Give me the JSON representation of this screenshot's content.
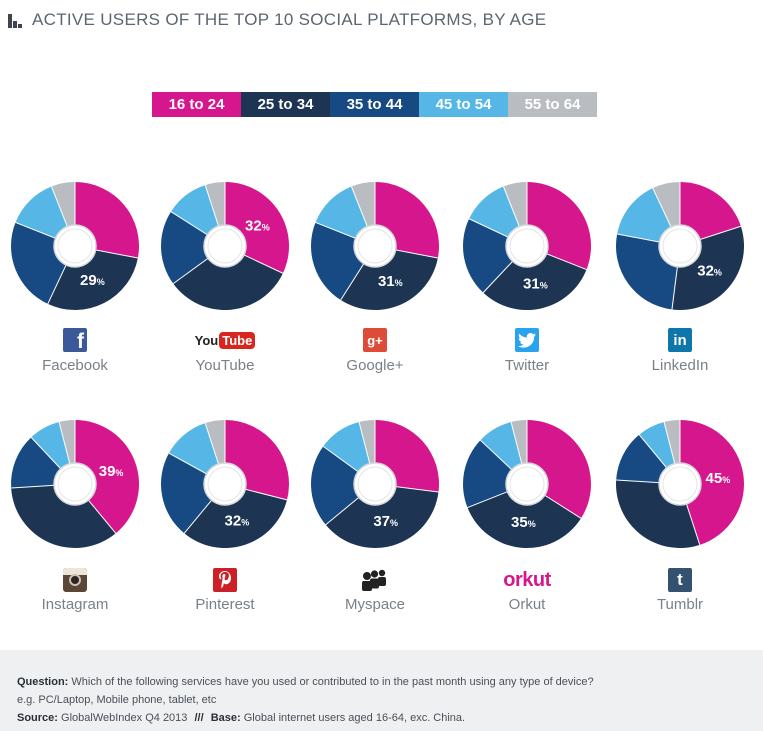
{
  "header": {
    "title": "ACTIVE USERS OF THE TOP 10 SOCIAL PLATFORMS, BY AGE"
  },
  "legend": [
    {
      "label": "16 to 24",
      "color": "#d6168d",
      "text_color": "#ffffff"
    },
    {
      "label": "25 to 34",
      "color": "#1d3553",
      "text_color": "#ffffff"
    },
    {
      "label": "35 to 44",
      "color": "#174a82",
      "text_color": "#ffffff"
    },
    {
      "label": "45 to 54",
      "color": "#56b7e6",
      "text_color": "#ffffff"
    },
    {
      "label": "55 to 64",
      "color": "#b9bcc0",
      "text_color": "#ffffff"
    }
  ],
  "chart_data": {
    "type": "pie",
    "categories": [
      "16 to 24",
      "25 to 34",
      "35 to 44",
      "45 to 54",
      "55 to 64"
    ],
    "series": [
      {
        "name": "Facebook",
        "values": [
          28,
          29,
          24,
          13,
          6
        ],
        "label_index": 1,
        "label": "29",
        "icon": "facebook-icon"
      },
      {
        "name": "YouTube",
        "values": [
          32,
          33,
          19,
          11,
          5
        ],
        "label_index": 0,
        "label": "32",
        "icon": "youtube-icon"
      },
      {
        "name": "Google+",
        "values": [
          28,
          31,
          22,
          13,
          6
        ],
        "label_index": 1,
        "label": "31",
        "icon": "google-plus-icon"
      },
      {
        "name": "Twitter",
        "values": [
          31,
          31,
          20,
          12,
          6
        ],
        "label_index": 1,
        "label": "31",
        "icon": "twitter-icon"
      },
      {
        "name": "LinkedIn",
        "values": [
          20,
          32,
          26,
          15,
          7
        ],
        "label_index": 1,
        "label": "32",
        "icon": "linkedin-icon"
      },
      {
        "name": "Instagram",
        "values": [
          39,
          35,
          14,
          8,
          4
        ],
        "label_index": 0,
        "label": "39",
        "icon": "instagram-icon"
      },
      {
        "name": "Pinterest",
        "values": [
          29,
          32,
          22,
          12,
          5
        ],
        "label_index": 1,
        "label": "32",
        "icon": "pinterest-icon"
      },
      {
        "name": "Myspace",
        "values": [
          27,
          37,
          21,
          11,
          4
        ],
        "label_index": 1,
        "label": "37",
        "icon": "myspace-icon"
      },
      {
        "name": "Orkut",
        "values": [
          34,
          35,
          18,
          9,
          4
        ],
        "label_index": 1,
        "label": "35",
        "icon": "orkut-icon"
      },
      {
        "name": "Tumblr",
        "values": [
          45,
          31,
          13,
          7,
          4
        ],
        "label_index": 0,
        "label": "45",
        "icon": "tumblr-icon"
      }
    ],
    "percent_symbol": "%"
  },
  "icons": {
    "youtube_word": "You",
    "youtube_tube": "Tube",
    "orkut_wordmark": "orkut",
    "facebook_glyph": "f",
    "google_glyph": "g+",
    "linkedin_glyph": "in",
    "tumblr_glyph": "t"
  },
  "footer": {
    "question_label": "Question:",
    "question_text": "Which of the following services have you used or contributed to in the past month using any type of device?",
    "question_note": "e.g. PC/Laptop, Mobile phone, tablet, etc",
    "source_label": "Source:",
    "source_text": "GlobalWebIndex Q4 2013",
    "separator": "///",
    "base_label": "Base:",
    "base_text": "Global internet users aged 16-64, exc. China."
  }
}
